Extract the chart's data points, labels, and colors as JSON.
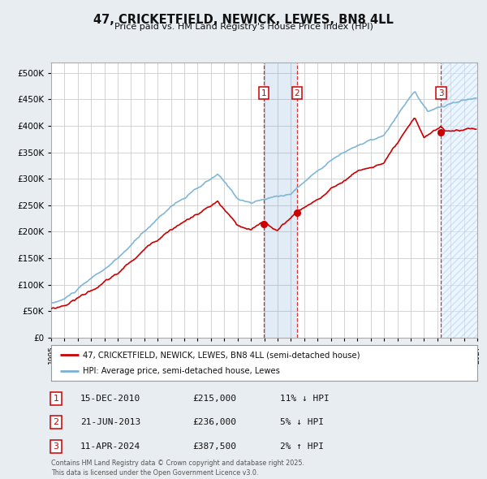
{
  "title": "47, CRICKETFIELD, NEWICK, LEWES, BN8 4LL",
  "subtitle": "Price paid vs. HM Land Registry's House Price Index (HPI)",
  "legend_line1": "47, CRICKETFIELD, NEWICK, LEWES, BN8 4LL (semi-detached house)",
  "legend_line2": "HPI: Average price, semi-detached house, Lewes",
  "sale1_date": "15-DEC-2010",
  "sale1_price": 215000,
  "sale1_pct": "11%",
  "sale1_dir": "↓",
  "sale2_date": "21-JUN-2013",
  "sale2_price": 236000,
  "sale2_pct": "5%",
  "sale2_dir": "↓",
  "sale3_date": "11-APR-2024",
  "sale3_price": 387500,
  "sale3_pct": "2%",
  "sale3_dir": "↑",
  "footer": "Contains HM Land Registry data © Crown copyright and database right 2025.\nThis data is licensed under the Open Government Licence v3.0.",
  "hpi_color": "#7ab3d4",
  "price_color": "#cc0000",
  "background_color": "#e8edf2",
  "plot_bg_color": "#ffffff",
  "grid_color": "#cccccc",
  "sale1_x": 2010.96,
  "sale2_x": 2013.47,
  "sale3_x": 2024.28,
  "hatch_start": 2024.28,
  "hatch_end": 2027.0,
  "shade_x1": 2010.96,
  "shade_x2": 2013.47,
  "ylim_min": 0,
  "ylim_max": 520000,
  "xlim_min": 1995.0,
  "xlim_max": 2027.0
}
